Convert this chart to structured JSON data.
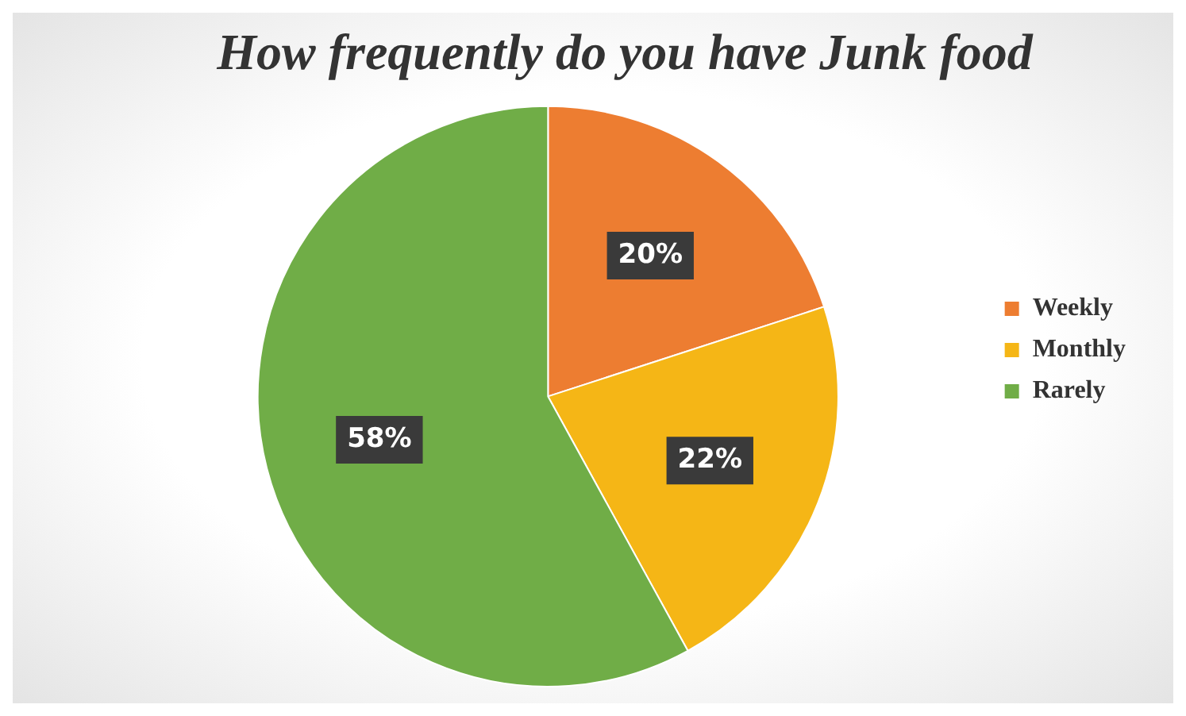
{
  "chart_data": {
    "type": "pie",
    "title": "How frequently do you have Junk food",
    "categories": [
      "Weekly",
      "Monthly",
      "Rarely"
    ],
    "values": [
      20,
      22,
      58
    ],
    "colors": [
      "#ed7d31",
      "#f5b616",
      "#70ad47"
    ],
    "value_labels": [
      "20%",
      "22%",
      "58%"
    ],
    "legend": "right"
  }
}
